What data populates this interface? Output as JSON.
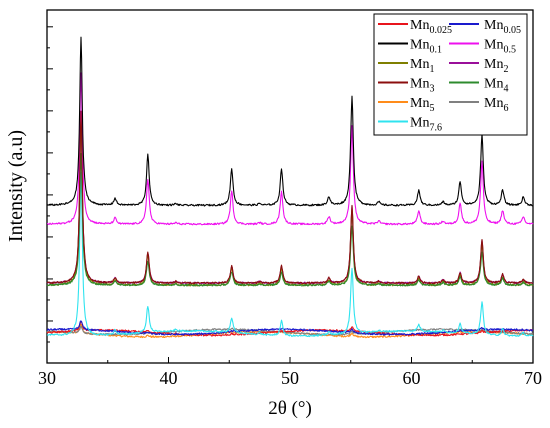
{
  "chart_data": {
    "type": "line",
    "xlabel": "2θ (°)",
    "ylabel": "Intensity (a.u)",
    "xlim": [
      30,
      70
    ],
    "x_ticks": [
      30,
      40,
      50,
      60,
      70
    ],
    "y_ticks_labeled": false,
    "grid": false,
    "legend_position": "top-right",
    "peaks_2theta": [
      32.8,
      35.6,
      38.3,
      40.6,
      45.2,
      47.5,
      49.3,
      53.2,
      55.1,
      57.3,
      60.6,
      62.6,
      64.0,
      65.8,
      67.5,
      69.2
    ],
    "series": [
      {
        "name": "Mn",
        "sub": "0.025",
        "color": "#e8141c",
        "group": "bottom",
        "baseline": 0.72,
        "peak_max": 0.955
      },
      {
        "name": "Mn",
        "sub": "0.05",
        "color": "#1a1acd",
        "group": "bottom",
        "baseline": 0.74,
        "peak_max": 0.95
      },
      {
        "name": "Mn",
        "sub": "0.1",
        "color": "#000000",
        "group": "top",
        "baseline": 3.75,
        "peak_max": 7.75
      },
      {
        "name": "Mn",
        "sub": "0.5",
        "color": "#ee10ee",
        "group": "top",
        "baseline": 3.3,
        "peak_max": 6.9
      },
      {
        "name": "Mn",
        "sub": "1",
        "color": "#7f7f00",
        "group": "middle",
        "baseline": 1.85,
        "peak_max": 5.9
      },
      {
        "name": "Mn",
        "sub": "2",
        "color": "#9a0f9a",
        "group": "middle",
        "baseline": 1.9,
        "peak_max": 5.95
      },
      {
        "name": "Mn",
        "sub": "3",
        "color": "#8b0e0e",
        "group": "middle",
        "baseline": 1.9,
        "peak_max": 6.0
      },
      {
        "name": "Mn",
        "sub": "4",
        "color": "#2e8b2e",
        "group": "middle",
        "baseline": 1.85,
        "peak_max": 5.0
      },
      {
        "name": "Mn",
        "sub": "5",
        "color": "#ff8c1a",
        "group": "bottom",
        "baseline": 0.68,
        "peak_max": 0.9
      },
      {
        "name": "Mn",
        "sub": "6",
        "color": "#808080",
        "group": "bottom",
        "baseline": 0.74,
        "peak_max": 0.9
      },
      {
        "name": "Mn",
        "sub": "7.6",
        "color": "#2fe3ef",
        "group": "bottom",
        "baseline": 0.7,
        "peak_max": 4.6
      }
    ]
  }
}
